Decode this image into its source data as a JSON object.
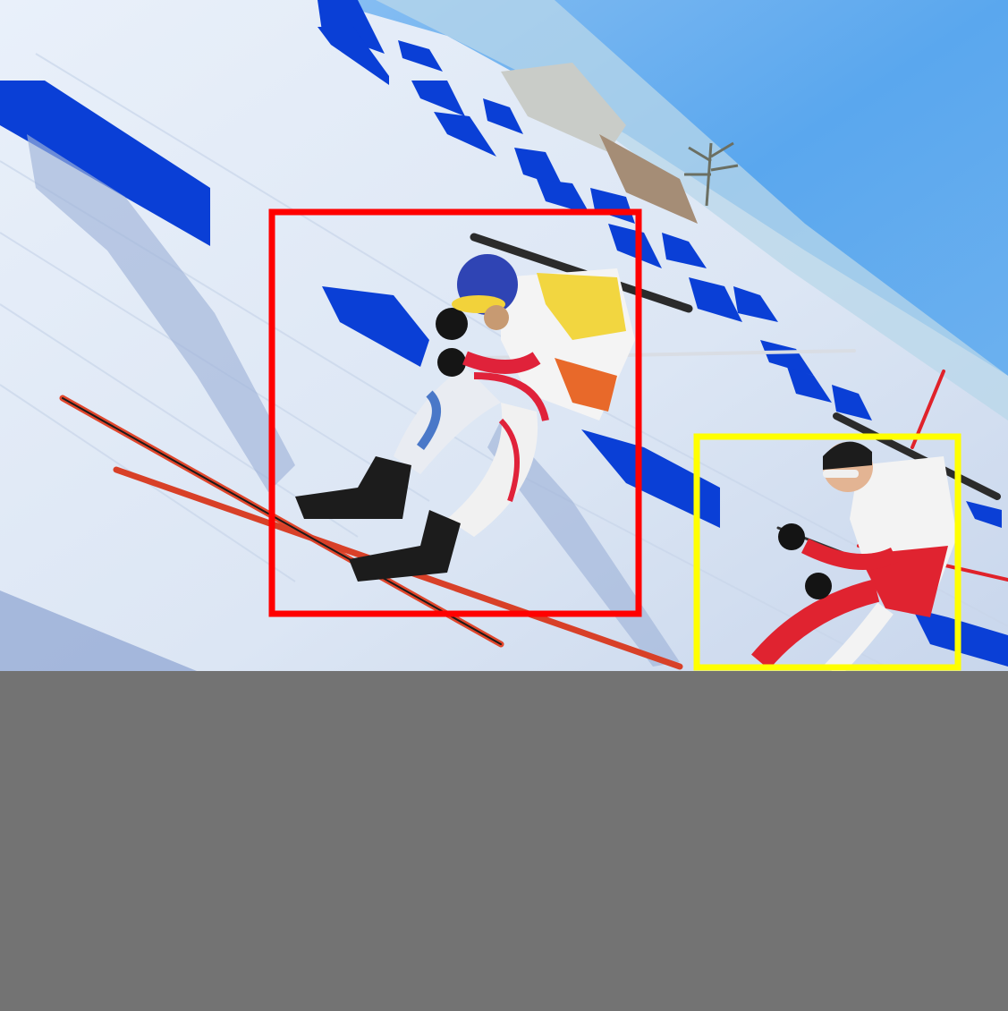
{
  "image": {
    "scene": "biathlon-race-two-skiers",
    "padding_color": "#737373"
  },
  "annotations": [
    {
      "label": "skier-blue-white-suit",
      "color": "#ff0000"
    },
    {
      "label": "skier-red-white-suit",
      "color": "#ffff00"
    }
  ],
  "colors": {
    "sky": "#5aa7ee",
    "snow": "#dfe8f5",
    "course_markers": "#0a3fd6"
  }
}
